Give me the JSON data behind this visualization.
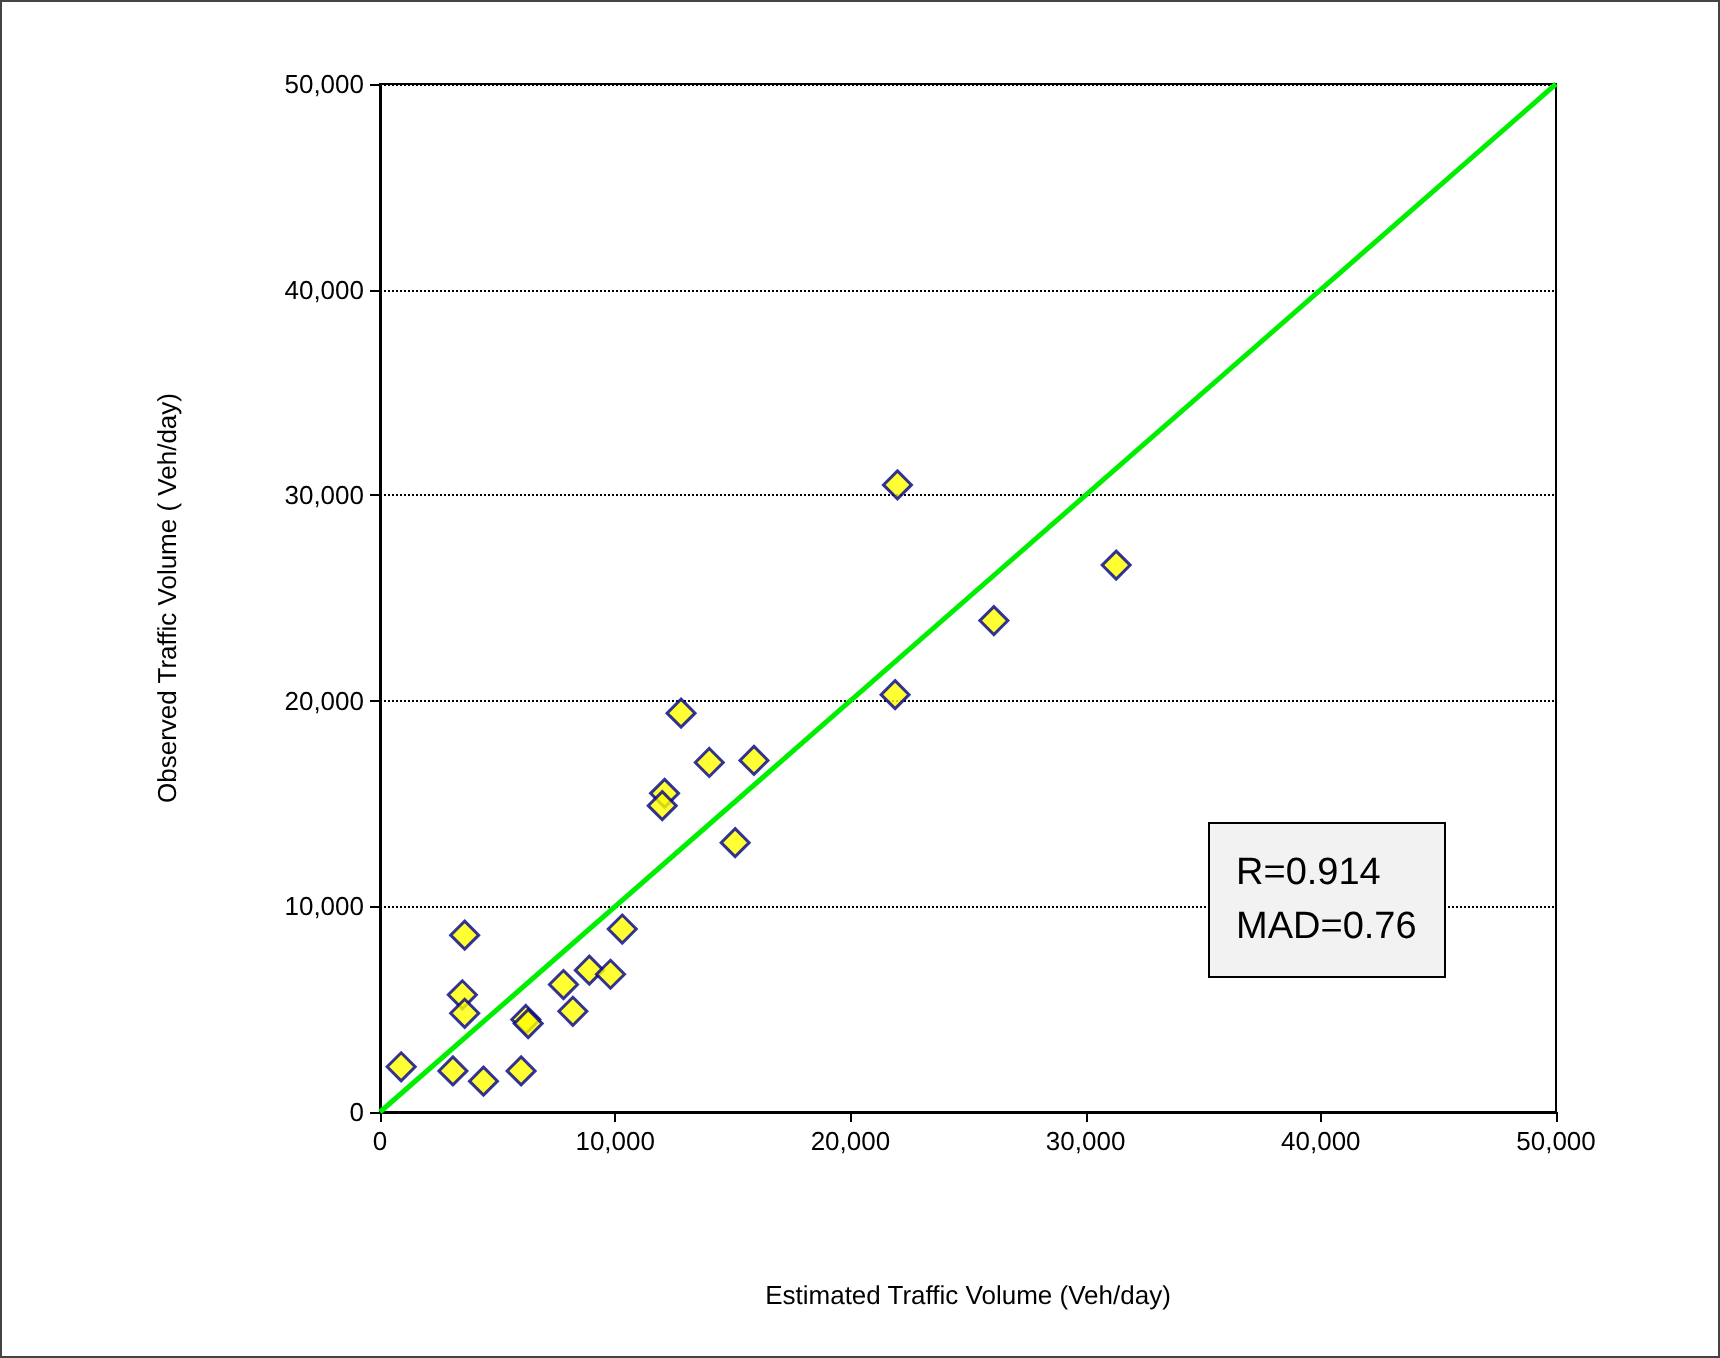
{
  "chart_data": {
    "type": "scatter",
    "xlabel": "Estimated Traffic Volume (Veh/day)",
    "ylabel": "Observed Traffic Volume ( Veh/day)",
    "annotations": [
      "R=0.914",
      "MAD=0.76"
    ],
    "series": [
      {
        "color": "#ffff00",
        "marker": "diamond",
        "x": [
          900,
          3100,
          4400,
          6000,
          3600,
          3500,
          3600,
          6200,
          6300,
          7800,
          8200,
          8900,
          9800,
          10300,
          12100,
          12000,
          15100,
          12800,
          14000,
          15900,
          22000,
          21900,
          26100,
          31300
        ],
        "values": [
          2200,
          2000,
          1500,
          2000,
          8600,
          5700,
          4800,
          4500,
          4300,
          6200,
          4900,
          6900,
          6700,
          8900,
          15500,
          14900,
          13100,
          19400,
          17000,
          17100,
          30500,
          20300,
          23900,
          26600
        ]
      },
      {
        "type": "line",
        "color": "#00ee00",
        "marker": "none",
        "line_style": "solid",
        "x": [
          0,
          50000
        ],
        "values": [
          0,
          50000
        ]
      }
    ],
    "xlim": [
      0,
      50000
    ],
    "xticks": [
      {
        "value": 0,
        "label": "0"
      },
      {
        "value": 10000,
        "label": "10,000"
      },
      {
        "value": 20000,
        "label": "20,000"
      },
      {
        "value": 30000,
        "label": "30,000"
      },
      {
        "value": 40000,
        "label": "40,000"
      },
      {
        "value": 50000,
        "label": "50,000"
      }
    ],
    "ylim": [
      0,
      50000
    ],
    "yticks": [
      {
        "value": 0,
        "label": "0"
      },
      {
        "value": 10000,
        "label": "10,000"
      },
      {
        "value": 20000,
        "label": "20,000"
      },
      {
        "value": 30000,
        "label": "30,000"
      },
      {
        "value": 40000,
        "label": "40,000"
      },
      {
        "value": 50000,
        "label": "50,000"
      }
    ],
    "grid": "y"
  }
}
